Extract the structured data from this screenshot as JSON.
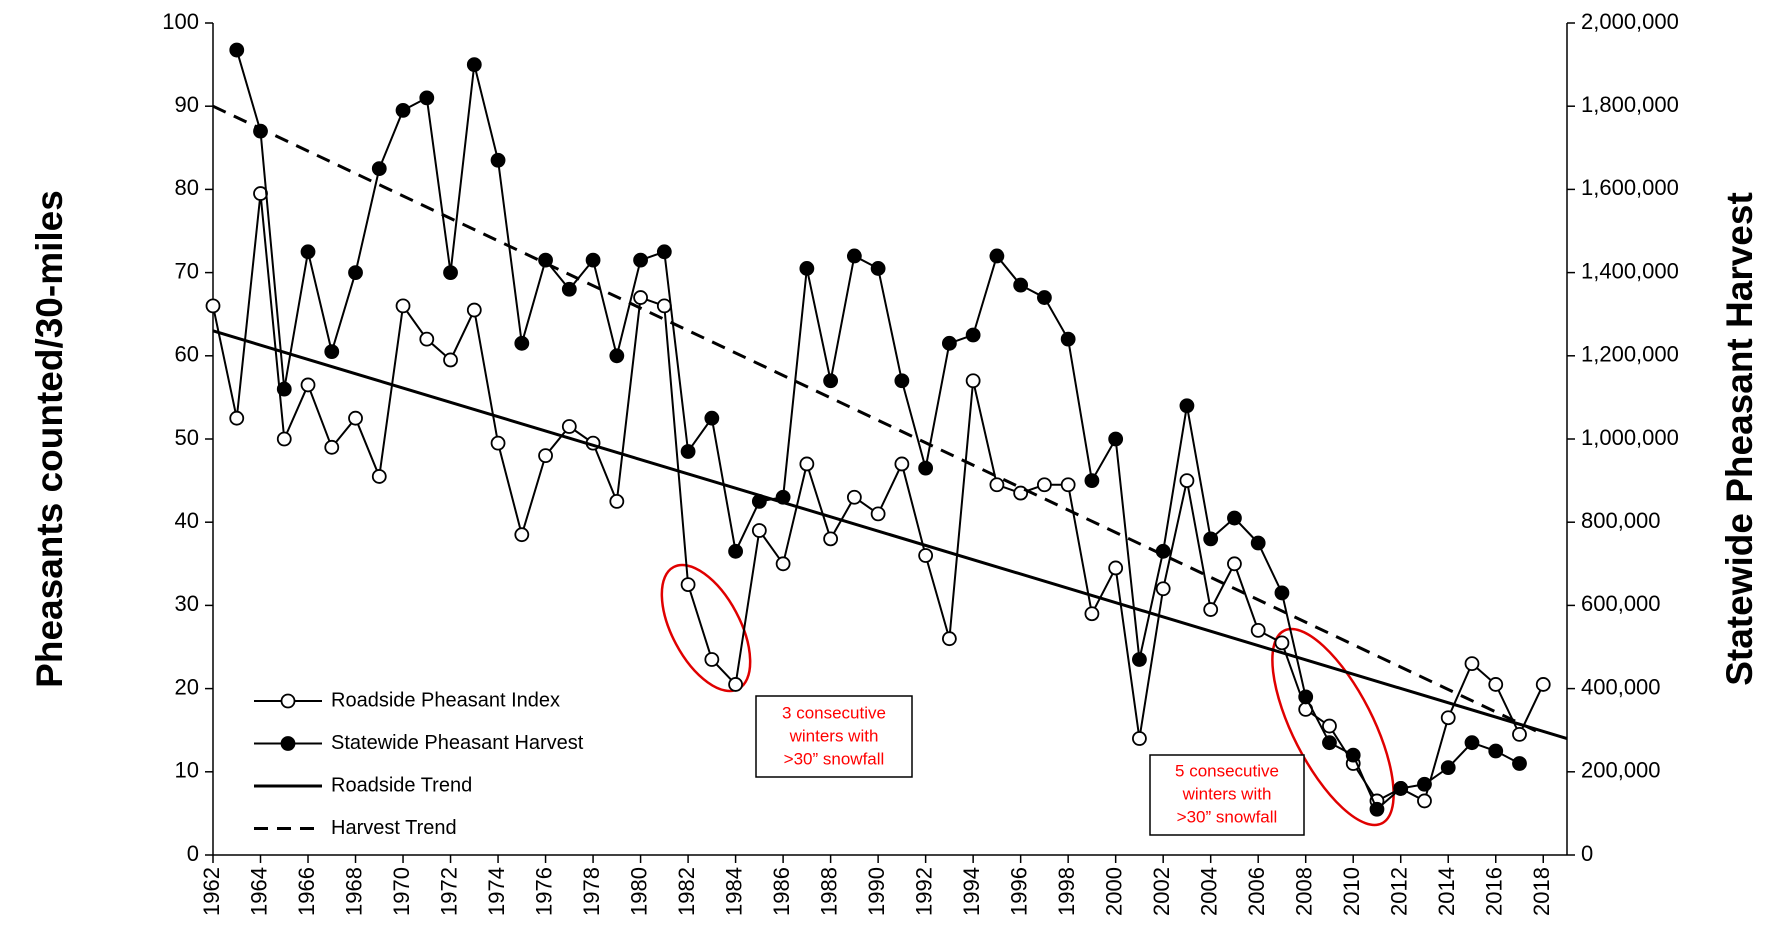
{
  "chart_data": {
    "type": "line",
    "y_label": "Pheasants counted/30-miles",
    "y2_label": "Statewide Pheasant Harvest",
    "x": [
      1962,
      1963,
      1964,
      1965,
      1966,
      1967,
      1968,
      1969,
      1970,
      1971,
      1972,
      1973,
      1974,
      1975,
      1976,
      1977,
      1978,
      1979,
      1980,
      1981,
      1982,
      1983,
      1984,
      1985,
      1986,
      1987,
      1988,
      1989,
      1990,
      1991,
      1992,
      1993,
      1994,
      1995,
      1996,
      1997,
      1998,
      1999,
      2000,
      2001,
      2002,
      2003,
      2004,
      2005,
      2006,
      2007,
      2008,
      2009,
      2010,
      2011,
      2012,
      2013,
      2014,
      2015,
      2016,
      2017,
      2018
    ],
    "xlim": [
      1962,
      2019
    ],
    "xticks": [
      1962,
      1964,
      1966,
      1968,
      1970,
      1972,
      1974,
      1976,
      1978,
      1980,
      1982,
      1984,
      1986,
      1988,
      1990,
      1992,
      1994,
      1996,
      1998,
      2000,
      2002,
      2004,
      2006,
      2008,
      2010,
      2012,
      2014,
      2016,
      2018
    ],
    "ylim": [
      0,
      100
    ],
    "yticks": [
      0,
      10,
      20,
      30,
      40,
      50,
      60,
      70,
      80,
      90,
      100
    ],
    "y2lim": [
      0,
      2000000
    ],
    "y2ticks": [
      0,
      {
        "value": 200000,
        "label": "200,000"
      },
      {
        "value": 400000,
        "label": "400,000"
      },
      {
        "value": 600000,
        "label": "600,000"
      },
      {
        "value": 800000,
        "label": "800,000"
      },
      {
        "value": 1000000,
        "label": "1,000,000"
      },
      {
        "value": 1200000,
        "label": "1,200,000"
      },
      {
        "value": 1400000,
        "label": "1,400,000"
      },
      {
        "value": 1600000,
        "label": "1,600,000"
      },
      {
        "value": 1800000,
        "label": "1,800,000"
      },
      {
        "value": 2000000,
        "label": "2,000,000"
      }
    ],
    "legend": "lower left",
    "series": [
      {
        "name": "Roadside Pheasant Index",
        "color": "#000000",
        "marker": "open",
        "values": [
          66,
          52.5,
          79.5,
          50,
          56.5,
          49,
          52.5,
          45.5,
          66,
          62,
          59.5,
          65.5,
          49.5,
          38.5,
          48,
          51.5,
          49.5,
          42.5,
          67,
          66,
          32.5,
          23.5,
          20.5,
          39,
          35,
          47,
          38,
          43,
          41,
          47,
          36,
          26,
          57,
          44.5,
          43.5,
          44.5,
          44.5,
          29,
          34.5,
          14,
          32,
          45,
          29.5,
          35,
          27,
          25.5,
          17.5,
          15.5,
          11,
          6.5,
          8,
          6.5,
          16.5,
          23,
          20.5,
          14.5,
          20.5
        ]
      },
      {
        "name": "Statewide Pheasant Harvest",
        "color": "#000000",
        "marker": "filled",
        "axis": "y2",
        "values": [
          null,
          1935000,
          1740000,
          1120000,
          1450000,
          1210000,
          1400000,
          1650000,
          1790000,
          1820000,
          1400000,
          1900000,
          1670000,
          1230000,
          1430000,
          1360000,
          1430000,
          1200000,
          1430000,
          1450000,
          970000,
          1050000,
          730000,
          850000,
          860000,
          1410000,
          1140000,
          1440000,
          1410000,
          1140000,
          930000,
          1230000,
          1250000,
          1440000,
          1370000,
          1340000,
          1240000,
          900000,
          1000000,
          470000,
          730000,
          1080000,
          760000,
          810000,
          750000,
          630000,
          380000,
          270000,
          240000,
          110000,
          160000,
          170000,
          210000,
          270000,
          250000,
          220000,
          null
        ]
      },
      {
        "name": "Roadside Trend",
        "color": "#000000",
        "dash": "solid",
        "x": [
          1962,
          2019
        ],
        "values": [
          63,
          14
        ]
      },
      {
        "name": "Harvest Trend",
        "color": "#000000",
        "dash": "dashed",
        "axis": "y2",
        "x": [
          1962,
          2018
        ],
        "values": [
          1800000,
          290000
        ]
      }
    ],
    "annotations": [
      {
        "lines": [
          "3 consecutive",
          "winters with",
          ">30” snowfall"
        ],
        "color": "#ff0000"
      },
      {
        "lines": [
          "5 consecutive",
          "winters with",
          ">30” snowfall"
        ],
        "color": "#ff0000"
      }
    ]
  }
}
